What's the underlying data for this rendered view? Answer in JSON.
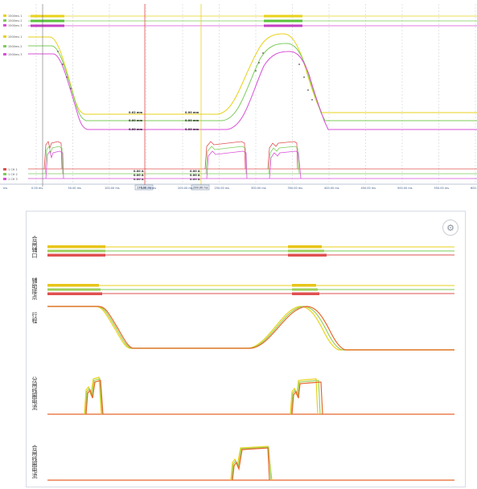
{
  "top": {
    "legend_top": [
      "1500ms 1",
      "1500ms 2",
      "1500ms 3"
    ],
    "legend_mid": [
      "1500ms 1",
      "1500ms 2",
      "1500ms 3"
    ],
    "legend_bottom": [
      "1 CH 1",
      "1 CH 2",
      "1 CH 3"
    ],
    "time_unit": "ms",
    "measure_values_left": [
      "0.02 mm",
      "0.00 mm",
      "0.00 mm"
    ],
    "measure_values_right": [
      "0.00 mm",
      "0.00 mm",
      "0.00 mm"
    ],
    "current_values_left": [
      "0.00 A",
      "0.00 A",
      "0.00 A"
    ],
    "current_values_right": [
      "0.00 A",
      "0.00 A",
      "0.00 A"
    ],
    "cursor_labels": [
      "136.00 ms",
      "299.00 ms"
    ],
    "x_ticks": [
      "0.00 ms",
      "50.00 ms",
      "100.00 ms",
      "150.00 ms",
      "200.00 ms",
      "250.00 ms",
      "300.00 ms",
      "350.00 ms",
      "400.00 ms",
      "450.00 ms",
      "500.00 ms",
      "550.00 ms",
      "600.00 ms"
    ]
  },
  "bottom": {
    "lanes": [
      "合闸辅口",
      "辅助接点",
      "行程",
      "分闸线圈电流",
      "合闸线圈电流"
    ],
    "settings_icon": "gear-icon"
  },
  "colors": {
    "yellow": "#e8d21a",
    "green": "#7ccc5a",
    "magenta": "#d84fd8",
    "red": "#e05050",
    "orange": "#e8862a",
    "grid": "#d9dde2"
  }
}
